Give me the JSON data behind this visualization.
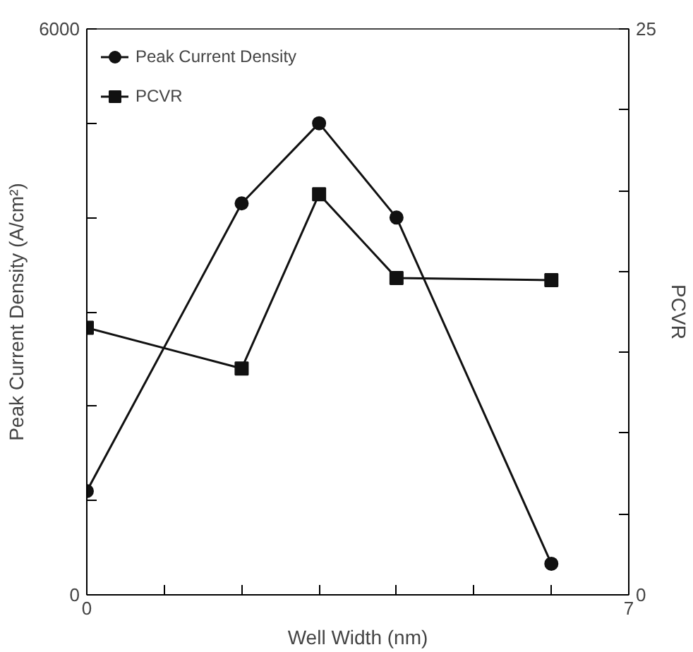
{
  "chart_data": {
    "type": "line",
    "xlabel": "Well Width (nm)",
    "ylabel": "Peak Current Density (A/cm²)",
    "y2label": "PCVR",
    "x": [
      0,
      2,
      3,
      4,
      6
    ],
    "series": [
      {
        "name": "Peak Current Density",
        "color": "#111111",
        "marker": "circle",
        "values": [
          1100,
          4150,
          5000,
          4000,
          330
        ]
      },
      {
        "name": "PCVR",
        "color": "#111111",
        "marker": "square",
        "axis": "y2",
        "values": [
          11.8,
          10.0,
          17.7,
          14.0,
          13.9
        ]
      }
    ],
    "xlim": [
      0,
      7
    ],
    "xticks": [
      0,
      {
        "value": 1,
        "label": null
      },
      {
        "value": 2,
        "label": null
      },
      {
        "value": 3,
        "label": null
      },
      {
        "value": 4,
        "label": null
      },
      {
        "value": 5,
        "label": null
      },
      {
        "value": 6,
        "label": null
      },
      7
    ],
    "ylim": [
      0,
      6000
    ],
    "yticks": [
      0,
      {
        "value": 1000,
        "label": null
      },
      {
        "value": 2000,
        "label": null
      },
      {
        "value": 3000,
        "label": null
      },
      {
        "value": 4000,
        "label": null
      },
      {
        "value": 5000,
        "label": null
      },
      6000
    ],
    "y2lim": [
      0,
      25
    ],
    "y2ticks": [
      0,
      {
        "value": 3.57,
        "label": null
      },
      {
        "value": 7.14,
        "label": null
      },
      {
        "value": 10.71,
        "label": null
      },
      {
        "value": 14.29,
        "label": null
      },
      {
        "value": 17.86,
        "label": null
      },
      {
        "value": 21.43,
        "label": null
      },
      25
    ],
    "legend": "top left",
    "grid": false,
    "line_style": "solid"
  }
}
